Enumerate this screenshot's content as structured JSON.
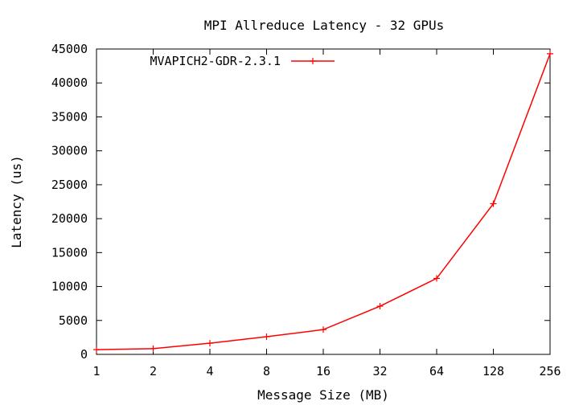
{
  "chart_data": {
    "type": "line",
    "title": "MPI Allreduce Latency - 32 GPUs",
    "xlabel": "Message Size (MB)",
    "ylabel": "Latency (us)",
    "x_scale": "log2",
    "categories": [
      "1",
      "2",
      "4",
      "8",
      "16",
      "32",
      "64",
      "128",
      "256"
    ],
    "x": [
      1,
      2,
      4,
      8,
      16,
      32,
      64,
      128,
      256
    ],
    "ylim": [
      0,
      45000
    ],
    "yticks": [
      0,
      5000,
      10000,
      15000,
      20000,
      25000,
      30000,
      35000,
      40000,
      45000
    ],
    "grid": false,
    "legend_position": "top-left",
    "series": [
      {
        "name": "MVAPICH2-GDR-2.3.1",
        "color": "#ff0000",
        "marker": "plus",
        "values": [
          700,
          850,
          1650,
          2600,
          3650,
          7100,
          11200,
          22200,
          44300
        ]
      }
    ]
  }
}
